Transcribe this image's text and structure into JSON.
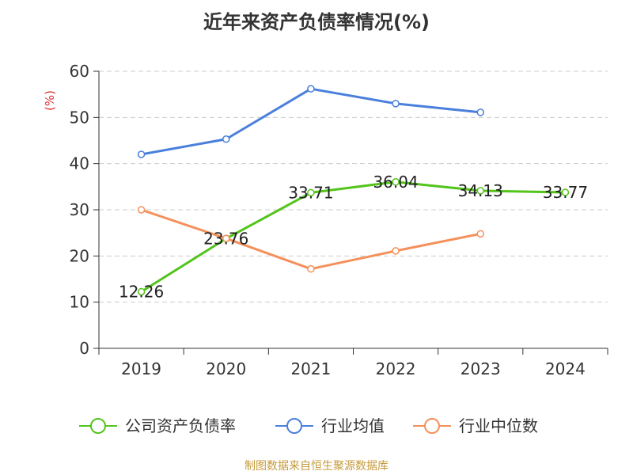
{
  "chart_data": {
    "type": "line",
    "title": "近年来资产负债率情况(%)",
    "ylabel": "(%)",
    "xlabel": "",
    "categories": [
      "2019",
      "2020",
      "2021",
      "2022",
      "2023",
      "2024"
    ],
    "ylim": [
      0,
      60
    ],
    "yticks": [
      0,
      10,
      20,
      30,
      40,
      50,
      60
    ],
    "grid": true,
    "legend_position": "bottom",
    "series": [
      {
        "name": "公司资产负债率",
        "color": "#52c41a",
        "values": [
          12.26,
          23.76,
          33.71,
          36.04,
          34.13,
          33.77
        ],
        "labels": [
          "12.26",
          "23.76",
          "33.71",
          "36.04",
          "34.13",
          "33.77"
        ]
      },
      {
        "name": "行业均值",
        "color": "#4a7fdc",
        "values": [
          42.0,
          45.3,
          56.2,
          53.0,
          51.1,
          null
        ]
      },
      {
        "name": "行业中位数",
        "color": "#f4905a",
        "values": [
          30.0,
          23.8,
          17.2,
          21.1,
          24.8,
          null
        ]
      }
    ]
  },
  "source_note": "制图数据来自恒生聚源数据库"
}
